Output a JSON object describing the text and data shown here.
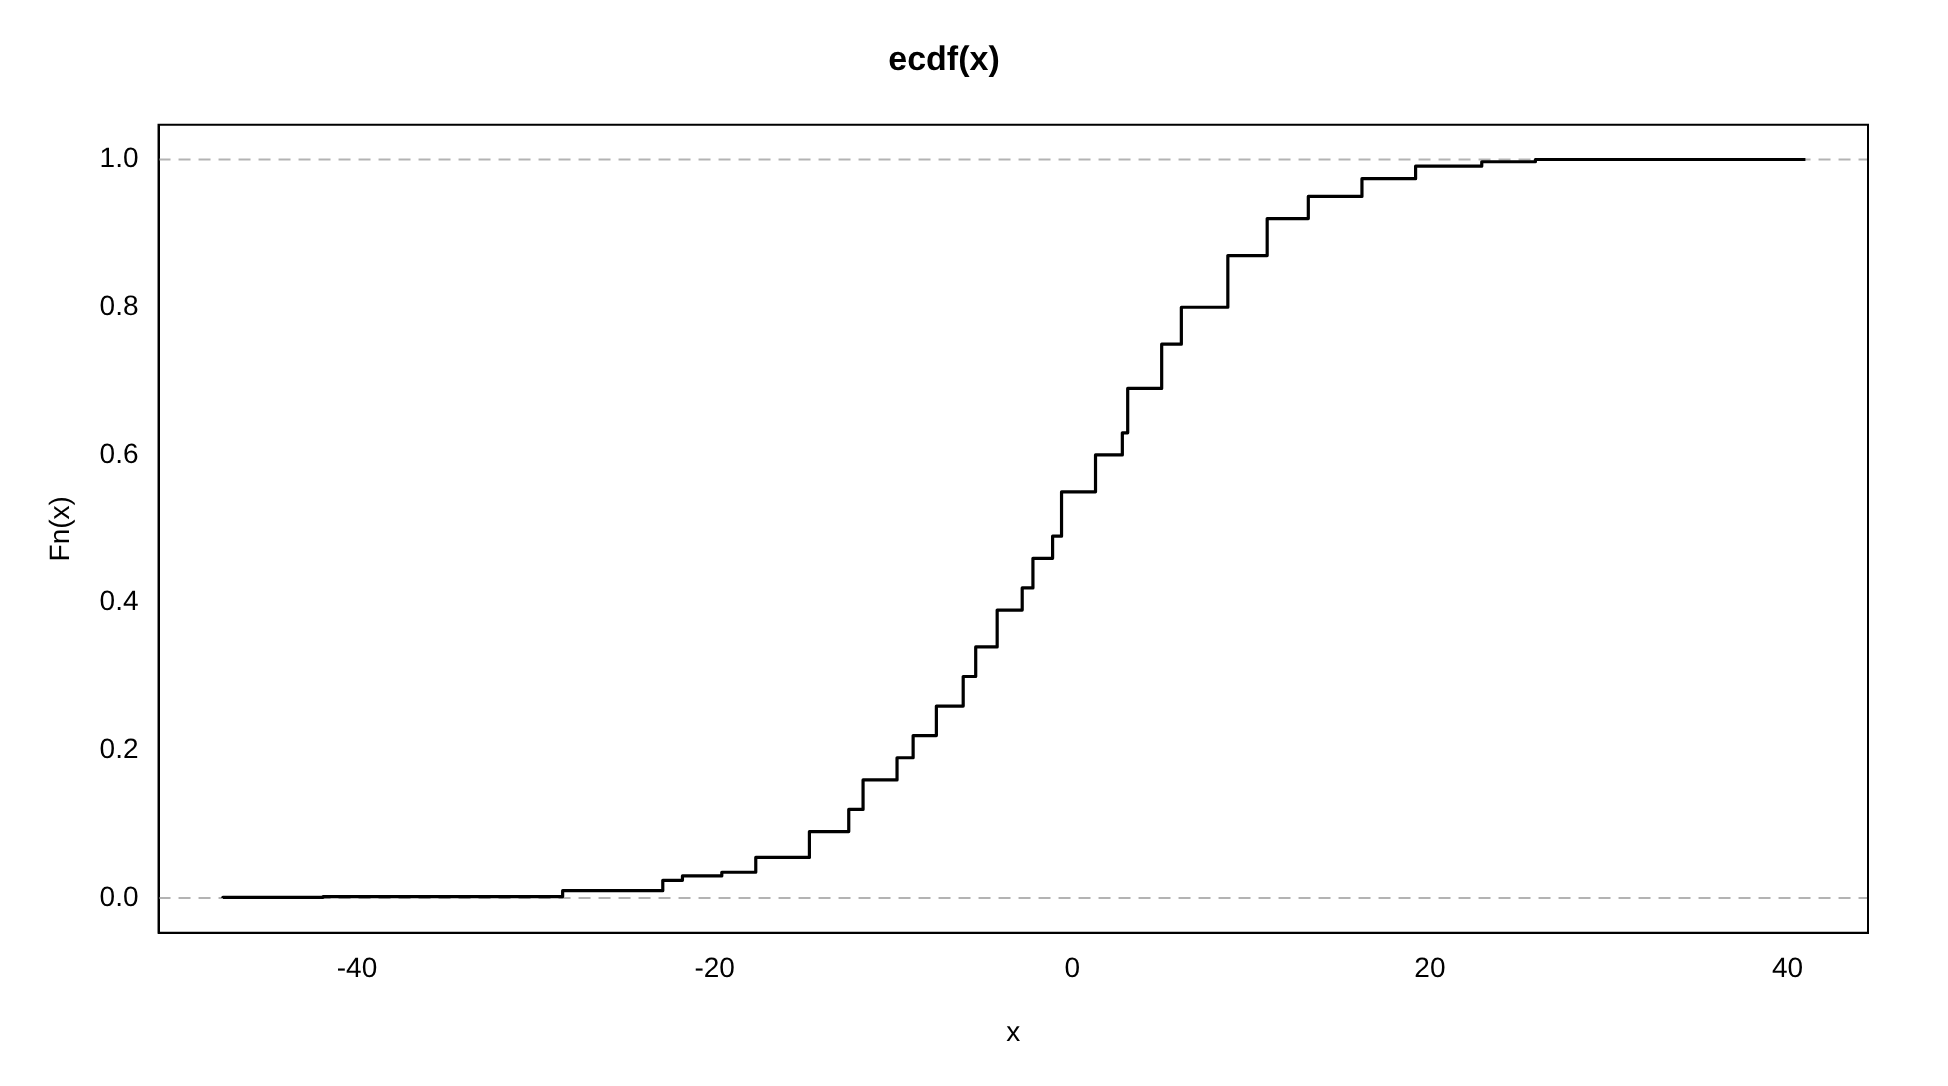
{
  "chart_data": {
    "type": "step",
    "title": "ecdf(x)",
    "xlabel": "x",
    "ylabel": "Fn(x)",
    "series": [
      {
        "color": "#000000",
        "x": [
          -47.5,
          -41.9,
          -28.5,
          -22.9,
          -21.8,
          -19.6,
          -17.7,
          -14.7,
          -12.5,
          -11.7,
          -9.8,
          -8.9,
          -7.6,
          -6.1,
          -5.4,
          -4.2,
          -2.8,
          -2.2,
          -1.1,
          -0.6,
          1.3,
          2.8,
          3.1,
          5.0,
          6.1,
          8.7,
          10.9,
          13.2,
          16.2,
          19.2,
          22.9,
          25.9,
          28.5,
          41.0
        ],
        "values": [
          0.0,
          0.001,
          0.002,
          0.01,
          0.024,
          0.03,
          0.035,
          0.055,
          0.09,
          0.12,
          0.16,
          0.19,
          0.22,
          0.26,
          0.3,
          0.34,
          0.39,
          0.42,
          0.46,
          0.49,
          0.55,
          0.6,
          0.63,
          0.69,
          0.75,
          0.8,
          0.87,
          0.92,
          0.95,
          0.974,
          0.991,
          0.997,
          1.0,
          1.0
        ]
      }
    ],
    "xlim": [
      -51.1,
      44.5
    ],
    "ylim": [
      -0.047,
      1.047
    ],
    "xticks": [
      -40,
      -20,
      0,
      20,
      40
    ],
    "yticks": [
      {
        "value": 0,
        "label": "0.0"
      },
      0.2,
      0.4,
      0.6,
      0.8,
      {
        "value": 1,
        "label": "1.0"
      }
    ],
    "ref_lines": [
      {
        "axis": "y",
        "value": 0,
        "color": "#b3b3b3",
        "line_style": "dashed"
      },
      {
        "axis": "y",
        "value": 1,
        "color": "#b3b3b3",
        "line_style": "dashed"
      }
    ],
    "grid": false,
    "legend": false,
    "marker": "none",
    "line_style": "solid"
  }
}
